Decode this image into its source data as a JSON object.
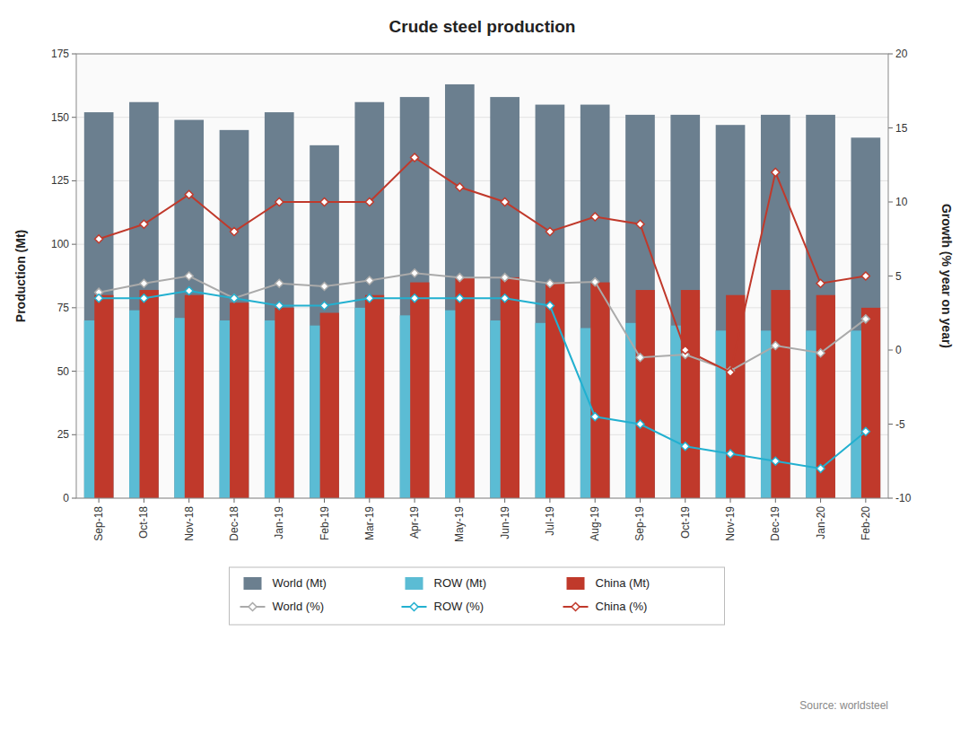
{
  "chart_data": {
    "type": "bar",
    "title": "Crude steel production",
    "categories": [
      "Sep-18",
      "Oct-18",
      "Nov-18",
      "Dec-18",
      "Jan-19",
      "Feb-19",
      "Mar-19",
      "Apr-19",
      "May-19",
      "Jun-19",
      "Jul-19",
      "Aug-19",
      "Sep-19",
      "Oct-19",
      "Nov-19",
      "Dec-19",
      "Jan-20",
      "Feb-20"
    ],
    "series": [
      {
        "name": "World (Mt)",
        "type": "bar",
        "color": "#6b7f8f",
        "values": [
          152,
          156,
          149,
          145,
          152,
          139,
          156,
          158,
          163,
          158,
          155,
          155,
          151,
          151,
          147,
          151,
          151,
          142
        ]
      },
      {
        "name": "ROW (Mt)",
        "type": "bar",
        "color": "#5bbcd4",
        "values": [
          70,
          74,
          71,
          70,
          70,
          68,
          75,
          72,
          74,
          70,
          69,
          67,
          69,
          68,
          66,
          66,
          66,
          66
        ]
      },
      {
        "name": "China (Mt)",
        "type": "bar",
        "color": "#c0392b",
        "values": [
          80,
          82,
          80,
          77,
          75,
          73,
          80,
          85,
          87,
          87,
          85,
          85,
          82,
          82,
          80,
          82,
          80,
          75
        ]
      },
      {
        "name": "World (%)",
        "type": "line",
        "axis": "y2",
        "marker": "diamond",
        "color": "#aaaaaa",
        "values": [
          3.9,
          4.5,
          5.0,
          3.5,
          4.5,
          4.3,
          4.7,
          5.2,
          4.9,
          4.9,
          4.5,
          4.6,
          -0.5,
          -0.3,
          -1.4,
          0.3,
          -0.2,
          2.1
        ]
      },
      {
        "name": "ROW (%)",
        "type": "line",
        "axis": "y2",
        "marker": "diamond",
        "color": "#22b0d0",
        "values": [
          3.5,
          3.5,
          4.0,
          3.5,
          3.0,
          3.0,
          3.5,
          3.5,
          3.5,
          3.5,
          3.0,
          -4.5,
          -5.0,
          -6.5,
          -7.0,
          -7.5,
          -8.0,
          -5.5
        ]
      },
      {
        "name": "China (%)",
        "type": "line",
        "axis": "y2",
        "marker": "diamond",
        "color": "#c0392b",
        "values": [
          7.5,
          8.5,
          10.5,
          8.0,
          10.0,
          10.0,
          10.0,
          13.0,
          11.0,
          10.0,
          8.0,
          9.0,
          8.5,
          0.0,
          -1.5,
          12.0,
          4.5,
          5.0
        ]
      }
    ],
    "ylabel": "Production (Mt)",
    "y2label": "Growth (% year on year)",
    "ylim": [
      0,
      175
    ],
    "yticks": [
      0,
      25,
      50,
      75,
      100,
      125,
      150,
      175
    ],
    "y2lim": [
      -10,
      20
    ],
    "y2ticks": [
      -10,
      -5,
      0,
      5,
      10,
      15,
      20
    ],
    "grid": true,
    "legend": "bottom",
    "annotations": [
      "Source: worldsteel"
    ]
  }
}
